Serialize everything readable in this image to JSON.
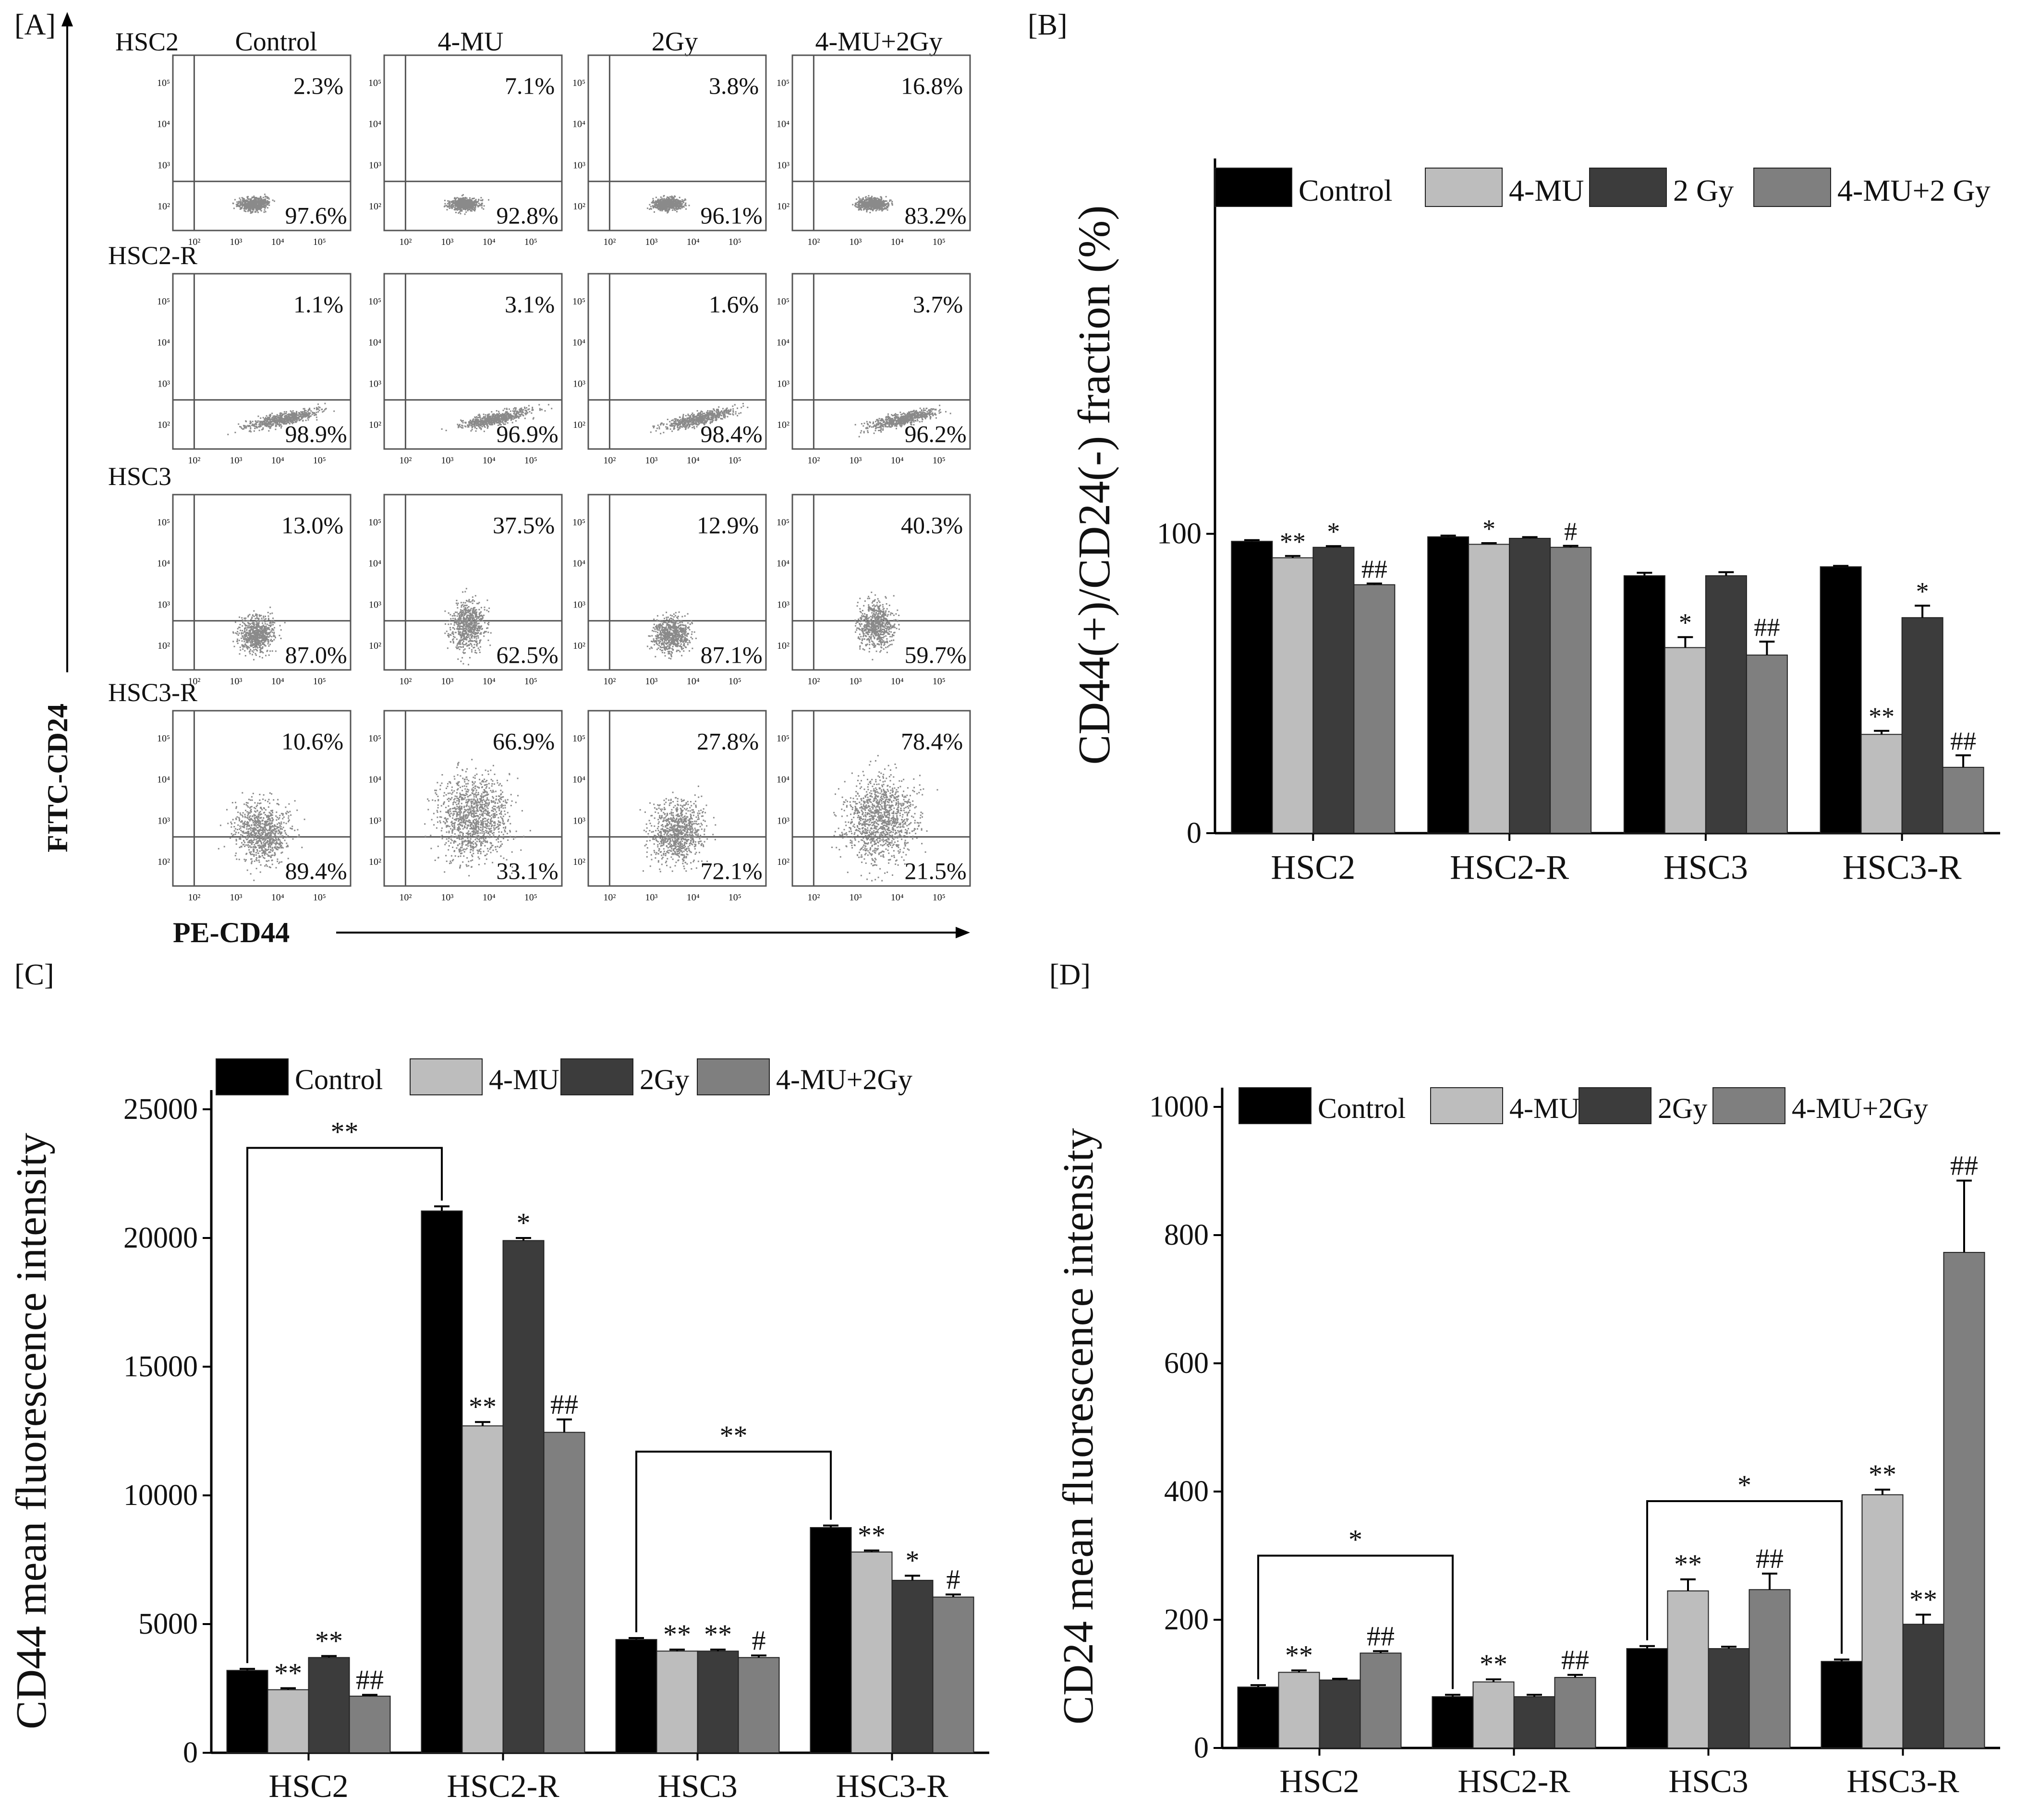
{
  "panel_letters": {
    "a": "[A]",
    "b": "[B]",
    "c": "[C]",
    "d": "[D]"
  },
  "chart_data": [
    {
      "panel": "[A]",
      "type": "scatter",
      "description_axes": {
        "xlabel": "PE-CD44",
        "ylabel": "FITC-CD24"
      },
      "conditions": [
        "Control",
        "4-MU",
        "2Gy",
        "4-MU+2Gy"
      ],
      "tick_labels": {
        "x": [
          "10²",
          "10³",
          "10⁴",
          "10⁵"
        ],
        "y": [
          "10²",
          "10³",
          "10⁴",
          "10⁵"
        ]
      },
      "rows": [
        {
          "name": "HSC2",
          "upper": [
            "2.3%",
            "7.1%",
            "3.8%",
            "16.8%"
          ],
          "lower": [
            "97.6%",
            "92.8%",
            "96.1%",
            "83.2%"
          ],
          "cloud": "tight"
        },
        {
          "name": "HSC2-R",
          "upper": [
            "1.1%",
            "3.1%",
            "1.6%",
            "3.7%"
          ],
          "lower": [
            "98.9%",
            "96.9%",
            "98.4%",
            "96.2%"
          ],
          "cloud": "diagonal"
        },
        {
          "name": "HSC3",
          "upper": [
            "13.0%",
            "37.5%",
            "12.9%",
            "40.3%"
          ],
          "lower": [
            "87.0%",
            "62.5%",
            "87.1%",
            "59.7%"
          ],
          "cloud": "medium"
        },
        {
          "name": "HSC3-R",
          "upper": [
            "10.6%",
            "66.9%",
            "27.8%",
            "78.4%"
          ],
          "lower": [
            "89.4%",
            "33.1%",
            "72.1%",
            "21.5%"
          ],
          "cloud": "wide"
        }
      ]
    },
    {
      "panel": "[B]",
      "type": "bar",
      "ylabel": "CD44(+)/CD24(-) fraction (%)",
      "xlabel": "",
      "ylim": [
        0,
        150
      ],
      "yticks": [
        0,
        100
      ],
      "categories": [
        "HSC2",
        "HSC2-R",
        "HSC3",
        "HSC3-R"
      ],
      "legend_position": "top",
      "series": [
        {
          "name": "Control",
          "color": "#000000",
          "values": [
            97.5,
            99,
            86,
            89
          ],
          "errors": [
            0.4,
            0.4,
            1,
            0.3
          ]
        },
        {
          "name": "4-MU",
          "color": "#bdbdbd",
          "values": [
            92,
            96.5,
            62,
            33
          ],
          "errors": [
            0.6,
            0.4,
            3.5,
            1.2
          ]
        },
        {
          "name": "2 Gy",
          "color": "#3c3c3c",
          "values": [
            95.5,
            98.5,
            86,
            72
          ],
          "errors": [
            0.4,
            0.4,
            1.2,
            4
          ]
        },
        {
          "name": "4-MU+2 Gy",
          "color": "#7f7f7f",
          "values": [
            83,
            95.5,
            59.5,
            22
          ],
          "errors": [
            0.4,
            0.5,
            4.5,
            4
          ]
        }
      ],
      "annotations": [
        {
          "cat": 0,
          "series": 1,
          "text": "**"
        },
        {
          "cat": 0,
          "series": 2,
          "text": "*"
        },
        {
          "cat": 0,
          "series": 3,
          "text": "##"
        },
        {
          "cat": 1,
          "series": 1,
          "text": "*"
        },
        {
          "cat": 1,
          "series": 3,
          "text": "#"
        },
        {
          "cat": 2,
          "series": 1,
          "text": "*"
        },
        {
          "cat": 2,
          "series": 3,
          "text": "##"
        },
        {
          "cat": 3,
          "series": 1,
          "text": "**"
        },
        {
          "cat": 3,
          "series": 2,
          "text": "*"
        },
        {
          "cat": 3,
          "series": 3,
          "text": "##"
        }
      ],
      "brackets": []
    },
    {
      "panel": "[C]",
      "type": "bar",
      "ylabel": "CD44 mean fluorescence intensity",
      "xlabel": "",
      "ylim": [
        0,
        25000
      ],
      "yticks": [
        0,
        5000,
        10000,
        15000,
        20000,
        25000
      ],
      "categories": [
        "HSC2",
        "HSC2-R",
        "HSC3",
        "HSC3-R"
      ],
      "legend_position": "top",
      "series": [
        {
          "name": "Control",
          "color": "#000000",
          "values": [
            3200,
            21050,
            4400,
            8750
          ],
          "errors": [
            60,
            180,
            60,
            80
          ]
        },
        {
          "name": "4-MU",
          "color": "#bdbdbd",
          "values": [
            2450,
            12700,
            3950,
            7800
          ],
          "errors": [
            60,
            150,
            60,
            60
          ]
        },
        {
          "name": "2Gy",
          "color": "#3c3c3c",
          "values": [
            3700,
            19900,
            3950,
            6700
          ],
          "errors": [
            60,
            100,
            60,
            180
          ]
        },
        {
          "name": "4-MU+2Gy",
          "color": "#7f7f7f",
          "values": [
            2200,
            12450,
            3700,
            6050
          ],
          "errors": [
            50,
            500,
            80,
            100
          ]
        }
      ],
      "annotations": [
        {
          "cat": 0,
          "series": 1,
          "text": "**"
        },
        {
          "cat": 0,
          "series": 2,
          "text": "**"
        },
        {
          "cat": 0,
          "series": 3,
          "text": "##"
        },
        {
          "cat": 1,
          "series": 1,
          "text": "**"
        },
        {
          "cat": 1,
          "series": 2,
          "text": "*"
        },
        {
          "cat": 1,
          "series": 3,
          "text": "##"
        },
        {
          "cat": 2,
          "series": 1,
          "text": "**"
        },
        {
          "cat": 2,
          "series": 2,
          "text": "**"
        },
        {
          "cat": 2,
          "series": 3,
          "text": "#"
        },
        {
          "cat": 3,
          "series": 1,
          "text": "**"
        },
        {
          "cat": 3,
          "series": 2,
          "text": "*"
        },
        {
          "cat": 3,
          "series": 3,
          "text": "#"
        }
      ],
      "brackets": [
        {
          "from": 0,
          "to": 1,
          "level": 23500,
          "text": "**"
        },
        {
          "from": 2,
          "to": 3,
          "level": 11700,
          "text": "**"
        }
      ]
    },
    {
      "panel": "[D]",
      "type": "bar",
      "ylabel": "CD24 mean fluorescence intensity",
      "xlabel": "",
      "ylim": [
        0,
        1000
      ],
      "yticks": [
        0,
        200,
        400,
        600,
        800,
        1000
      ],
      "categories": [
        "HSC2",
        "HSC2-R",
        "HSC3",
        "HSC3-R"
      ],
      "legend_position": "top",
      "series": [
        {
          "name": "Control",
          "color": "#000000",
          "values": [
            95,
            80,
            155,
            135
          ],
          "errors": [
            3,
            3,
            4,
            3
          ]
        },
        {
          "name": "4-MU",
          "color": "#bdbdbd",
          "values": [
            118,
            103,
            245,
            395
          ],
          "errors": [
            3,
            4,
            18,
            8
          ]
        },
        {
          "name": "2Gy",
          "color": "#3c3c3c",
          "values": [
            106,
            80,
            155,
            193
          ],
          "errors": [
            2,
            3,
            3,
            15
          ]
        },
        {
          "name": "4-MU+2Gy",
          "color": "#7f7f7f",
          "values": [
            148,
            110,
            247,
            773
          ],
          "errors": [
            3,
            4,
            25,
            112
          ]
        }
      ],
      "annotations": [
        {
          "cat": 0,
          "series": 1,
          "text": "**"
        },
        {
          "cat": 0,
          "series": 3,
          "text": "##"
        },
        {
          "cat": 1,
          "series": 1,
          "text": "**"
        },
        {
          "cat": 1,
          "series": 3,
          "text": "##"
        },
        {
          "cat": 2,
          "series": 1,
          "text": "**"
        },
        {
          "cat": 2,
          "series": 3,
          "text": "##"
        },
        {
          "cat": 3,
          "series": 1,
          "text": "**"
        },
        {
          "cat": 3,
          "series": 2,
          "text": "**"
        },
        {
          "cat": 3,
          "series": 3,
          "text": "##"
        }
      ],
      "brackets": [
        {
          "from": 0,
          "to": 1,
          "level": 300,
          "text": "*"
        },
        {
          "from": 2,
          "to": 3,
          "level": 385,
          "text": "*"
        }
      ]
    }
  ]
}
